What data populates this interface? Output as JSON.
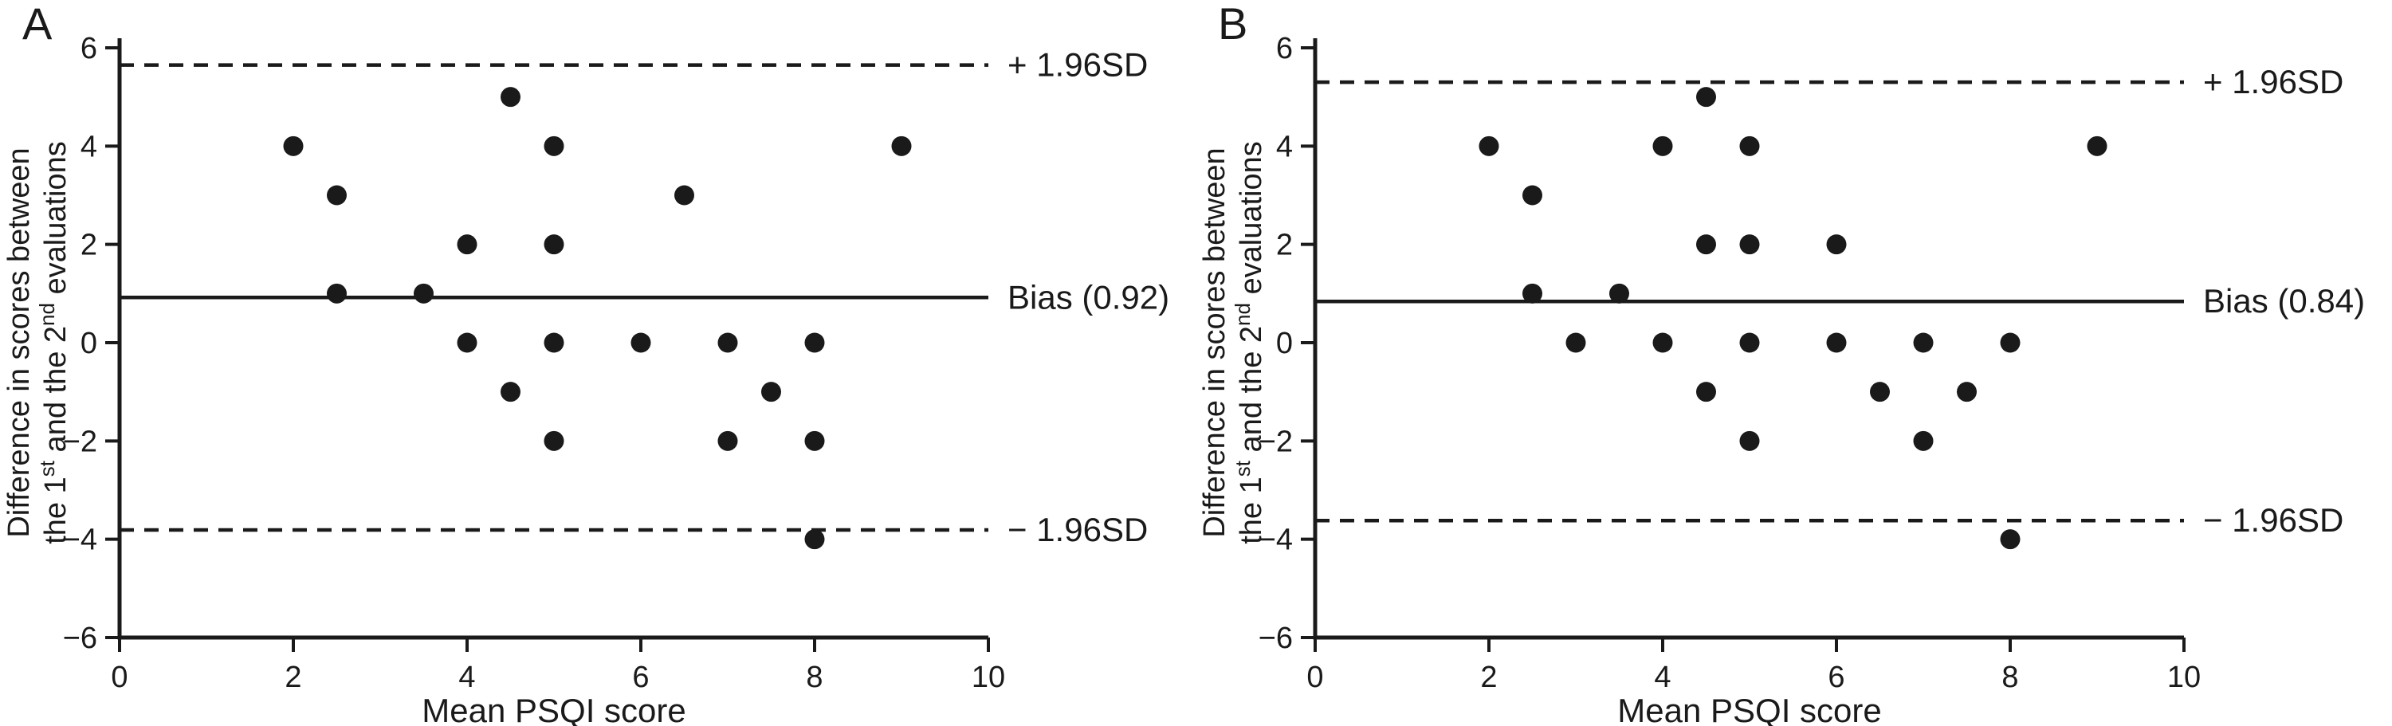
{
  "figure": {
    "background": "#ffffff",
    "ink_color": "#1a1a1a"
  },
  "chart_data": [
    {
      "type": "scatter",
      "panel_label": "A",
      "xlabel": "Mean PSQI score",
      "ylabel_line1": "Difference in scores between",
      "ylabel_line2_parts": [
        {
          "text": "the 1"
        },
        {
          "text": "st",
          "sup": true
        },
        {
          "text": " and the 2"
        },
        {
          "text": "nd",
          "sup": true
        },
        {
          "text": " evaluations"
        }
      ],
      "xlim": [
        0,
        10
      ],
      "ylim": [
        -6,
        6
      ],
      "xticks": [
        0,
        2,
        4,
        6,
        8,
        10
      ],
      "yticks": [
        -6,
        -4,
        -2,
        0,
        2,
        4,
        6
      ],
      "bias": 0.92,
      "bias_label": "Bias (0.92)",
      "upper_limit": 5.65,
      "upper_label": "+ 1.96SD",
      "lower_limit": -3.81,
      "lower_label": "− 1.96SD",
      "points": [
        [
          2,
          4
        ],
        [
          2.5,
          3
        ],
        [
          2.5,
          1
        ],
        [
          3.5,
          1
        ],
        [
          4,
          2
        ],
        [
          4,
          0
        ],
        [
          4.5,
          5
        ],
        [
          4.5,
          -1
        ],
        [
          5,
          4
        ],
        [
          5,
          2
        ],
        [
          5,
          0
        ],
        [
          5,
          -2
        ],
        [
          6,
          0
        ],
        [
          6.5,
          3
        ],
        [
          7,
          0
        ],
        [
          7,
          -2
        ],
        [
          7.5,
          -1
        ],
        [
          8,
          0
        ],
        [
          8,
          -2
        ],
        [
          8,
          -4
        ],
        [
          9,
          4
        ]
      ]
    },
    {
      "type": "scatter",
      "panel_label": "B",
      "xlabel": "Mean PSQI score",
      "ylabel_line1": "Difference in scores between",
      "ylabel_line2_parts": [
        {
          "text": "the 1"
        },
        {
          "text": "st",
          "sup": true
        },
        {
          "text": " and the 2"
        },
        {
          "text": "nd",
          "sup": true
        },
        {
          "text": " evaluations"
        }
      ],
      "xlim": [
        0,
        10
      ],
      "ylim": [
        -6,
        6
      ],
      "xticks": [
        0,
        2,
        4,
        6,
        8,
        10
      ],
      "yticks": [
        -6,
        -4,
        -2,
        0,
        2,
        4,
        6
      ],
      "bias": 0.84,
      "bias_label": "Bias (0.84)",
      "upper_limit": 5.3,
      "upper_label": "+ 1.96SD",
      "lower_limit": -3.62,
      "lower_label": "− 1.96SD",
      "points": [
        [
          2,
          4
        ],
        [
          2.5,
          3
        ],
        [
          2.5,
          1
        ],
        [
          3,
          0
        ],
        [
          3.5,
          1
        ],
        [
          4,
          4
        ],
        [
          4,
          0
        ],
        [
          4.5,
          5
        ],
        [
          4.5,
          2
        ],
        [
          4.5,
          -1
        ],
        [
          5,
          4
        ],
        [
          5,
          2
        ],
        [
          5,
          0
        ],
        [
          5,
          -2
        ],
        [
          6,
          2
        ],
        [
          6,
          0
        ],
        [
          6.5,
          -1
        ],
        [
          7,
          0
        ],
        [
          7,
          -2
        ],
        [
          7.5,
          -1
        ],
        [
          8,
          0
        ],
        [
          8,
          -4
        ],
        [
          9,
          4
        ]
      ]
    }
  ]
}
